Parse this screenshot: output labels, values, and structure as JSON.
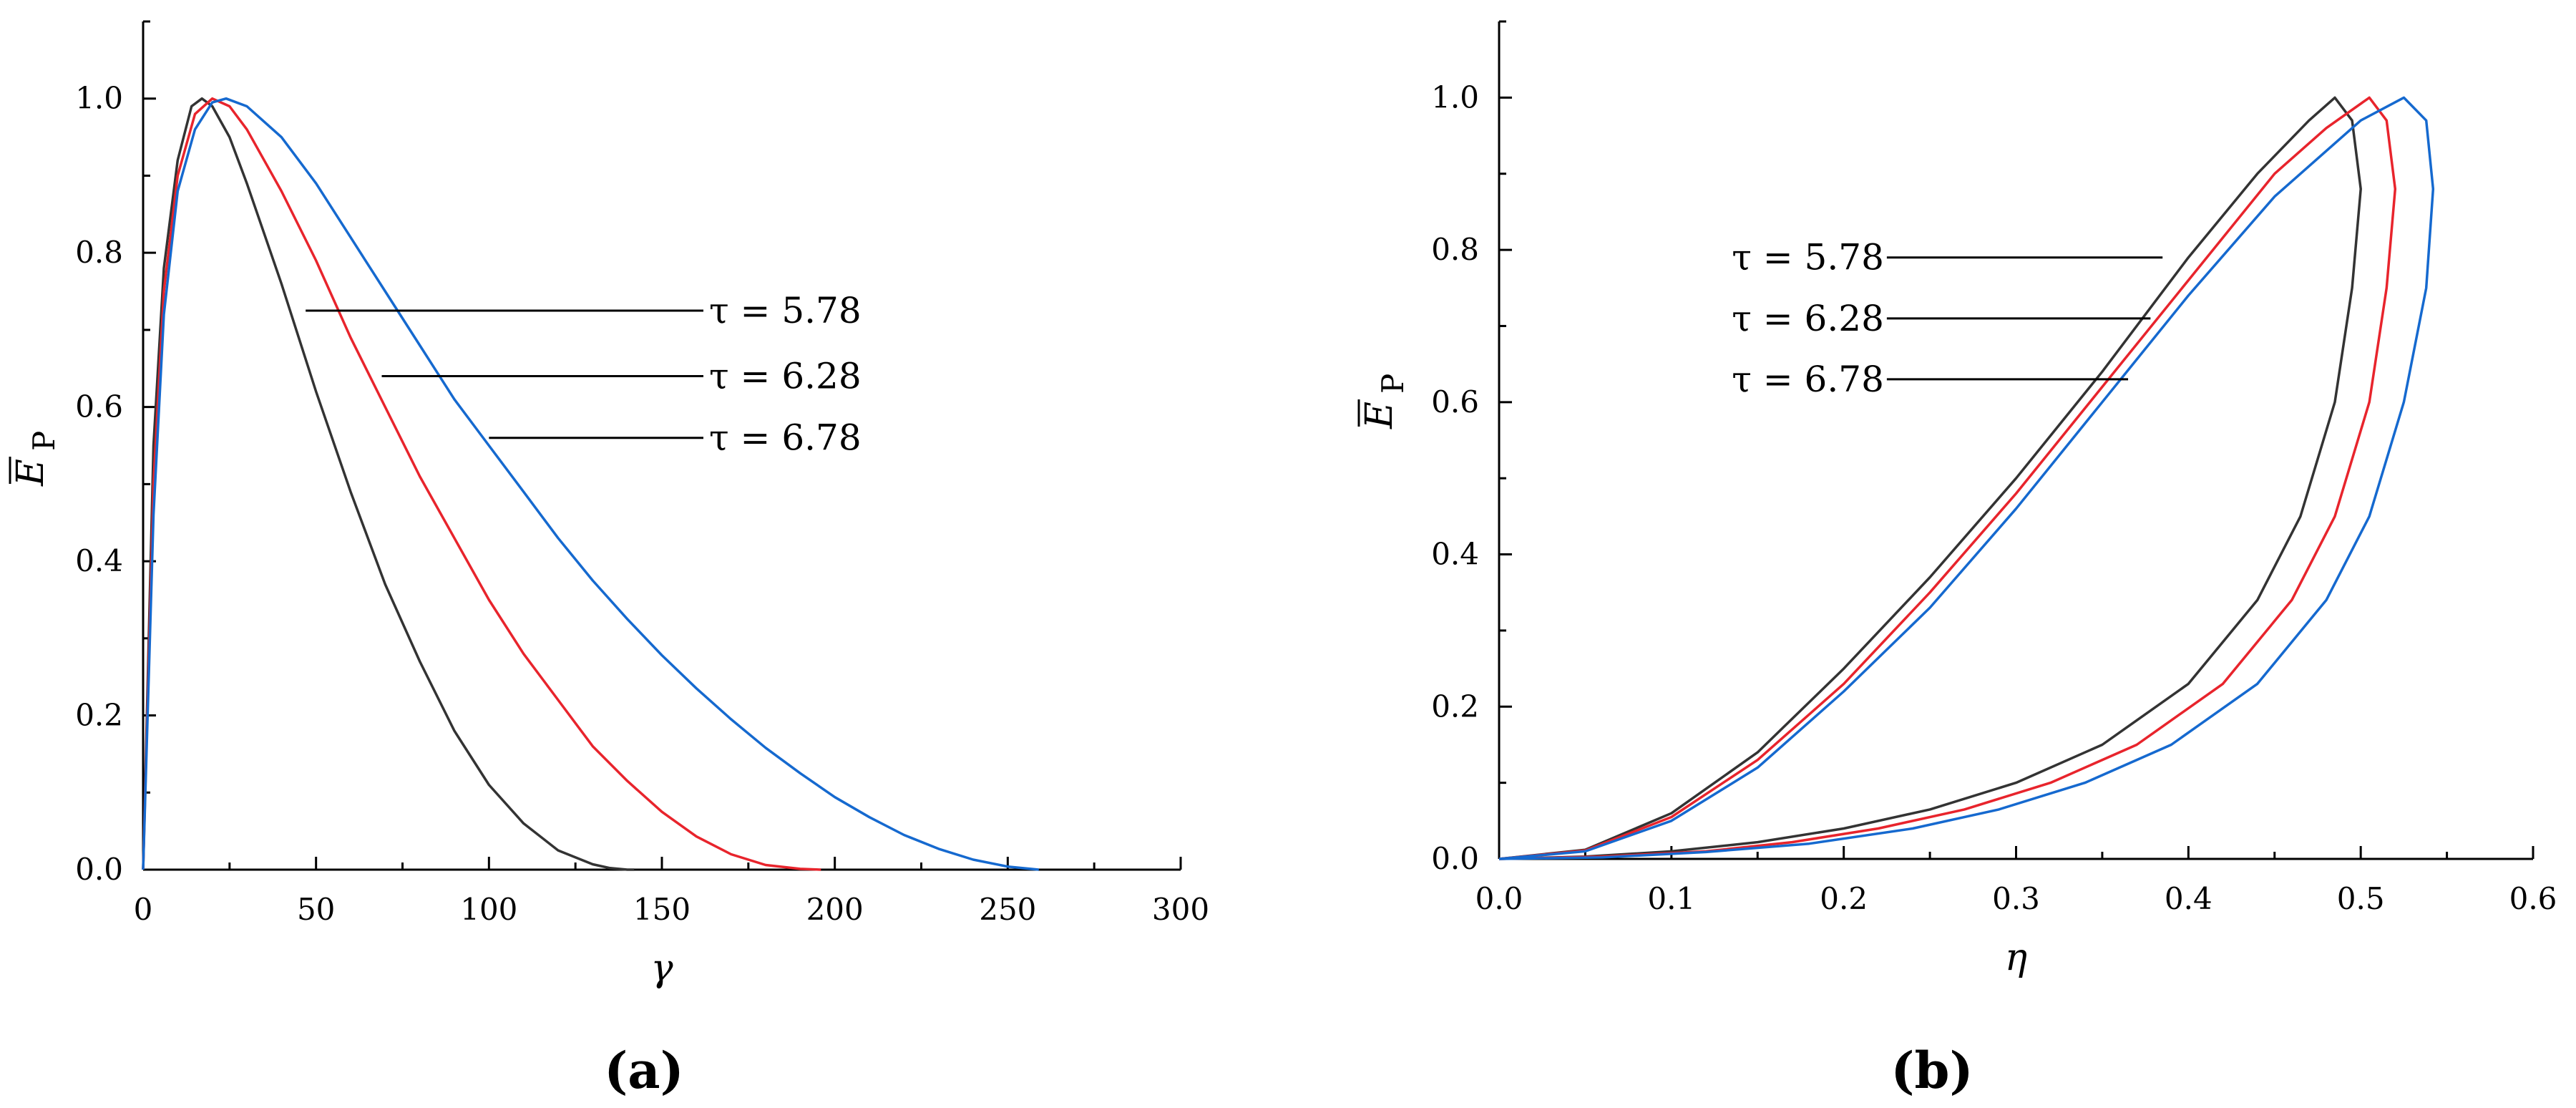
{
  "chart_data": [
    {
      "panel_label": "(a)",
      "type": "line",
      "xlabel": "γ",
      "ylabel_main": "E",
      "ylabel_sub": "P",
      "xlim": [
        0,
        300
      ],
      "ylim": [
        0,
        1.1
      ],
      "xticks": [
        0,
        50,
        100,
        150,
        200,
        250,
        300
      ],
      "yticks": [
        0.0,
        0.2,
        0.4,
        0.6,
        0.8,
        1.0
      ],
      "xtick_labels": [
        "0",
        "50",
        "100",
        "150",
        "200",
        "250",
        "300"
      ],
      "ytick_labels": [
        "0.0",
        "0.2",
        "0.4",
        "0.6",
        "0.8",
        "1.0"
      ],
      "series": [
        {
          "name": "τ = 5.78",
          "color": "#333333",
          "x": [
            0,
            3,
            6,
            10,
            14,
            17,
            20,
            25,
            30,
            40,
            50,
            60,
            70,
            80,
            90,
            100,
            110,
            120,
            130,
            135,
            140,
            142
          ],
          "y": [
            0,
            0.55,
            0.78,
            0.92,
            0.99,
            1.0,
            0.99,
            0.95,
            0.89,
            0.76,
            0.62,
            0.49,
            0.37,
            0.27,
            0.18,
            0.11,
            0.06,
            0.025,
            0.007,
            0.002,
            0.0,
            0.0
          ]
        },
        {
          "name": "τ = 6.28",
          "color": "#e8242c",
          "x": [
            0,
            3,
            6,
            10,
            15,
            20,
            25,
            30,
            40,
            50,
            60,
            70,
            80,
            90,
            100,
            110,
            120,
            130,
            140,
            150,
            160,
            170,
            180,
            190,
            196
          ],
          "y": [
            0,
            0.5,
            0.75,
            0.9,
            0.98,
            1.0,
            0.99,
            0.96,
            0.88,
            0.79,
            0.69,
            0.6,
            0.51,
            0.43,
            0.35,
            0.28,
            0.22,
            0.16,
            0.115,
            0.075,
            0.043,
            0.02,
            0.006,
            0.001,
            0.0
          ]
        },
        {
          "name": "τ = 6.78",
          "color": "#1569cf",
          "x": [
            0,
            3,
            6,
            10,
            15,
            20,
            24,
            30,
            40,
            50,
            60,
            70,
            80,
            90,
            100,
            110,
            120,
            130,
            140,
            150,
            160,
            170,
            180,
            190,
            200,
            210,
            220,
            230,
            240,
            250,
            259
          ],
          "y": [
            0,
            0.46,
            0.72,
            0.88,
            0.96,
            0.995,
            1.0,
            0.99,
            0.95,
            0.89,
            0.82,
            0.75,
            0.68,
            0.61,
            0.55,
            0.49,
            0.43,
            0.375,
            0.325,
            0.278,
            0.235,
            0.195,
            0.158,
            0.125,
            0.094,
            0.068,
            0.045,
            0.027,
            0.013,
            0.004,
            0.0
          ]
        }
      ],
      "annotations": [
        {
          "text": "τ = 5.78",
          "x0": 47,
          "x1": 162,
          "y": 0.725
        },
        {
          "text": "τ = 6.28",
          "x0": 69,
          "x1": 162,
          "y": 0.64
        },
        {
          "text": "τ = 6.78",
          "x0": 100,
          "x1": 162,
          "y": 0.56
        }
      ]
    },
    {
      "panel_label": "(b)",
      "type": "line",
      "xlabel": "η",
      "ylabel_main": "E",
      "ylabel_sub": "P",
      "xlim": [
        0,
        0.6
      ],
      "ylim": [
        0,
        1.1
      ],
      "xticks": [
        0.0,
        0.1,
        0.2,
        0.3,
        0.4,
        0.5,
        0.6
      ],
      "yticks": [
        0.0,
        0.2,
        0.4,
        0.6,
        0.8,
        1.0
      ],
      "xtick_labels": [
        "0.0",
        "0.1",
        "0.2",
        "0.3",
        "0.4",
        "0.5",
        "0.6"
      ],
      "ytick_labels": [
        "0.0",
        "0.2",
        "0.4",
        "0.6",
        "0.8",
        "1.0"
      ],
      "series": [
        {
          "name": "τ = 5.78",
          "color": "#333333",
          "x": [
            0,
            0.05,
            0.1,
            0.15,
            0.2,
            0.25,
            0.3,
            0.35,
            0.4,
            0.44,
            0.47,
            0.485,
            0.495,
            0.5,
            0.495,
            0.485,
            0.465,
            0.44,
            0.4,
            0.35,
            0.3,
            0.25,
            0.2,
            0.15,
            0.1,
            0.05,
            0.0
          ],
          "y": [
            0,
            0.012,
            0.06,
            0.14,
            0.25,
            0.37,
            0.5,
            0.64,
            0.79,
            0.9,
            0.97,
            1.0,
            0.97,
            0.88,
            0.75,
            0.6,
            0.45,
            0.34,
            0.23,
            0.15,
            0.1,
            0.065,
            0.04,
            0.022,
            0.01,
            0.003,
            0
          ]
        },
        {
          "name": "τ = 6.28",
          "color": "#e8242c",
          "x": [
            0,
            0.05,
            0.1,
            0.15,
            0.2,
            0.25,
            0.3,
            0.35,
            0.4,
            0.45,
            0.48,
            0.505,
            0.515,
            0.52,
            0.515,
            0.505,
            0.485,
            0.46,
            0.42,
            0.37,
            0.32,
            0.27,
            0.22,
            0.17,
            0.12,
            0.06,
            0.0
          ],
          "y": [
            0,
            0.011,
            0.055,
            0.13,
            0.23,
            0.35,
            0.48,
            0.62,
            0.76,
            0.9,
            0.96,
            1.0,
            0.97,
            0.88,
            0.75,
            0.6,
            0.45,
            0.34,
            0.23,
            0.15,
            0.1,
            0.065,
            0.04,
            0.022,
            0.01,
            0.003,
            0
          ]
        },
        {
          "name": "τ = 6.78",
          "color": "#1569cf",
          "x": [
            0,
            0.05,
            0.1,
            0.15,
            0.2,
            0.25,
            0.3,
            0.35,
            0.4,
            0.45,
            0.5,
            0.525,
            0.538,
            0.542,
            0.538,
            0.525,
            0.505,
            0.48,
            0.44,
            0.39,
            0.34,
            0.29,
            0.24,
            0.18,
            0.12,
            0.06,
            0.0
          ],
          "y": [
            0,
            0.01,
            0.05,
            0.12,
            0.22,
            0.33,
            0.46,
            0.6,
            0.74,
            0.87,
            0.97,
            1.0,
            0.97,
            0.88,
            0.75,
            0.6,
            0.45,
            0.34,
            0.23,
            0.15,
            0.1,
            0.065,
            0.04,
            0.02,
            0.009,
            0.002,
            0
          ]
        }
      ],
      "annotations": [
        {
          "text": "τ = 5.78",
          "x0": 0.225,
          "x1": 0.385,
          "y": 0.79
        },
        {
          "text": "τ = 6.28",
          "x0": 0.225,
          "x1": 0.378,
          "y": 0.71
        },
        {
          "text": "τ = 6.78",
          "x0": 0.225,
          "x1": 0.365,
          "y": 0.63
        }
      ]
    }
  ]
}
